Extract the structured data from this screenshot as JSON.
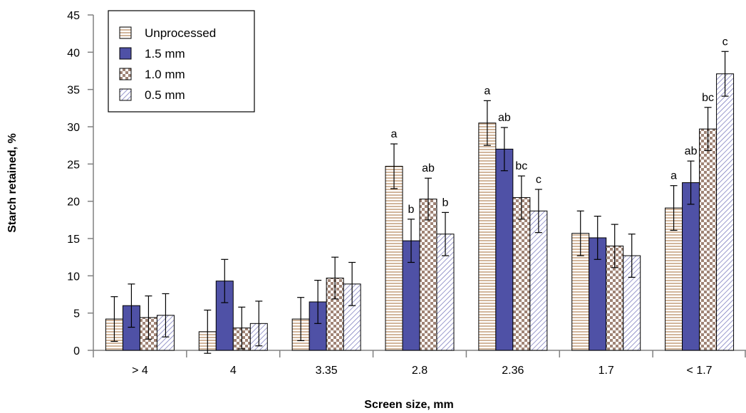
{
  "chart_data": {
    "type": "bar",
    "xlabel": "Screen size, mm",
    "ylabel": "Starch retained, %",
    "ylim": [
      0,
      45
    ],
    "yticks": [
      0,
      5,
      10,
      15,
      20,
      25,
      30,
      35,
      40,
      45
    ],
    "categories": [
      "> 4",
      "4",
      "3.35",
      "2.8",
      "2.36",
      "1.7",
      "< 1.7"
    ],
    "legend_position": "top-left",
    "grid": false,
    "series": [
      {
        "name": "Unprocessed",
        "pattern": "horizontal-lines",
        "color": "#b5865a",
        "values": [
          4.2,
          2.5,
          4.2,
          24.7,
          30.5,
          15.7,
          19.1
        ],
        "errors": [
          3.0,
          2.9,
          2.9,
          3.0,
          3.0,
          3.0,
          3.0
        ],
        "labels": [
          "",
          "",
          "",
          "a",
          "a",
          "",
          "a"
        ]
      },
      {
        "name": "1.5 mm",
        "pattern": "solid",
        "color": "#4f51a6",
        "values": [
          6.0,
          9.3,
          6.5,
          14.7,
          27.0,
          15.1,
          22.5
        ],
        "errors": [
          2.9,
          2.9,
          2.9,
          2.9,
          2.9,
          2.9,
          2.9
        ],
        "labels": [
          "",
          "",
          "",
          "b",
          "ab",
          "",
          "ab"
        ]
      },
      {
        "name": "1.0 mm",
        "pattern": "checker",
        "color": "#a08476",
        "values": [
          4.4,
          3.0,
          9.7,
          20.3,
          20.5,
          14.0,
          29.7
        ],
        "errors": [
          2.9,
          2.8,
          2.8,
          2.8,
          2.9,
          2.9,
          2.9
        ],
        "labels": [
          "",
          "",
          "",
          "ab",
          "bc",
          "",
          "bc"
        ]
      },
      {
        "name": "0.5 mm",
        "pattern": "diagonal-lines",
        "color": "#6f6fb8",
        "values": [
          4.7,
          3.6,
          8.9,
          15.6,
          18.7,
          12.7,
          37.1
        ],
        "errors": [
          2.9,
          3.0,
          2.9,
          2.9,
          2.9,
          2.9,
          3.0
        ],
        "labels": [
          "",
          "",
          "",
          "b",
          "c",
          "",
          "c"
        ]
      }
    ]
  }
}
